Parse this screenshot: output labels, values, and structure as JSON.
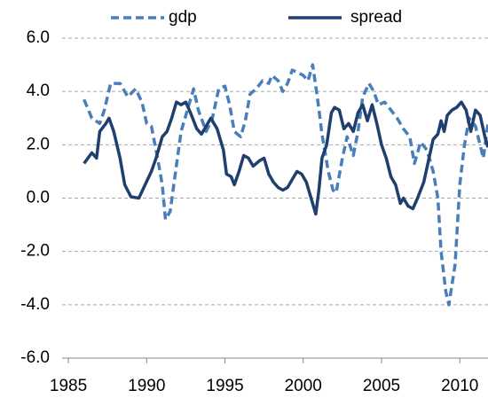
{
  "chart_data": {
    "type": "line",
    "legend": "top",
    "grid": true,
    "xlim": [
      1984.6,
      2011.8
    ],
    "xticks": [
      1985,
      1990,
      1995,
      2000,
      2005,
      2010
    ],
    "ylim": [
      -6,
      6
    ],
    "yticks": [
      {
        "value": -6,
        "label": "-6.0"
      },
      {
        "value": -4,
        "label": "-4.0"
      },
      {
        "value": -2,
        "label": "-2.0"
      },
      {
        "value": 0,
        "label": "0.0"
      },
      {
        "value": 2,
        "label": "2.0"
      },
      {
        "value": 4,
        "label": "4.0"
      },
      {
        "value": 6,
        "label": "6.0"
      }
    ],
    "series": [
      {
        "name": "gdp",
        "color": "#4a7ebb",
        "dash": true,
        "x": [
          1986,
          1986.5,
          1987,
          1987.3,
          1987.7,
          1988.3,
          1988.8,
          1989.3,
          1989.7,
          1990,
          1990.3,
          1990.7,
          1991,
          1991.2,
          1991.5,
          1991.8,
          1992.2,
          1992.6,
          1993,
          1993.3,
          1993.8,
          1994.2,
          1994.6,
          1995,
          1995.3,
          1995.6,
          1996,
          1996.3,
          1996.6,
          1997,
          1997.4,
          1997.8,
          1998,
          1998.4,
          1998.7,
          1999,
          1999.3,
          1999.7,
          2000,
          2000.3,
          2000.6,
          2000.9,
          2001.2,
          2001.6,
          2001.9,
          2002.1,
          2002.5,
          2002.8,
          2003.2,
          2003.5,
          2003.8,
          2004.2,
          2004.5,
          2004.8,
          2005.2,
          2005.6,
          2006,
          2006.4,
          2006.8,
          2007.1,
          2007.5,
          2007.9,
          2008.3,
          2008.6,
          2008.8,
          2009.1,
          2009.3,
          2009.7,
          2010,
          2010.3,
          2010.6,
          2011,
          2011.5,
          2011.8
        ],
        "values": [
          3.7,
          3.0,
          2.8,
          3.3,
          4.3,
          4.3,
          3.8,
          4.1,
          3.6,
          2.8,
          2.7,
          1.5,
          0.5,
          -0.8,
          -0.5,
          0.8,
          2.5,
          3.3,
          4.1,
          3.3,
          2.5,
          3.0,
          4.1,
          4.2,
          3.5,
          2.5,
          2.3,
          2.9,
          3.9,
          4.1,
          4.4,
          4.3,
          4.6,
          4.4,
          4.0,
          4.3,
          4.8,
          4.7,
          4.6,
          4.4,
          5.0,
          3.8,
          2.4,
          1.0,
          0.3,
          0.2,
          1.5,
          2.3,
          1.6,
          2.5,
          3.8,
          4.3,
          4.0,
          3.5,
          3.6,
          3.3,
          3.0,
          2.6,
          2.3,
          1.3,
          2.1,
          1.8,
          1.0,
          0.0,
          -2.0,
          -3.5,
          -4.0,
          -2.5,
          0.5,
          2.0,
          3.0,
          2.7,
          1.5,
          2.8
        ]
      },
      {
        "name": "spread",
        "color": "#1f3f6e",
        "dash": false,
        "x": [
          1986,
          1986.5,
          1986.8,
          1987,
          1987.4,
          1987.6,
          1987.9,
          1988.3,
          1988.6,
          1989,
          1989.5,
          1989.9,
          1990.3,
          1990.6,
          1991,
          1991.3,
          1991.6,
          1991.9,
          1992.2,
          1992.5,
          1992.8,
          1993.2,
          1993.5,
          1993.8,
          1994.1,
          1994.5,
          1994.9,
          1995.1,
          1995.4,
          1995.6,
          1995.9,
          1996.2,
          1996.5,
          1996.8,
          1997.2,
          1997.5,
          1997.8,
          1998.1,
          1998.4,
          1998.7,
          1999,
          1999.3,
          1999.6,
          1999.9,
          2000.2,
          2000.5,
          2000.8,
          2001,
          2001.2,
          2001.5,
          2001.8,
          2002,
          2002.3,
          2002.6,
          2002.9,
          2003.2,
          2003.5,
          2003.8,
          2004.1,
          2004.4,
          2004.7,
          2005,
          2005.3,
          2005.6,
          2005.9,
          2006.2,
          2006.4,
          2006.7,
          2007,
          2007.3,
          2007.7,
          2008,
          2008.3,
          2008.6,
          2008.8,
          2009,
          2009.2,
          2009.5,
          2009.8,
          2010.1,
          2010.4,
          2010.7,
          2011,
          2011.3,
          2011.6,
          2011.8
        ],
        "values": [
          1.3,
          1.7,
          1.5,
          2.5,
          2.8,
          3.0,
          2.5,
          1.5,
          0.5,
          0.05,
          0.0,
          0.5,
          1.0,
          1.5,
          2.3,
          2.5,
          3.0,
          3.6,
          3.5,
          3.6,
          3.2,
          2.6,
          2.4,
          2.7,
          3.0,
          2.6,
          1.8,
          0.9,
          0.8,
          0.5,
          1.0,
          1.6,
          1.5,
          1.2,
          1.4,
          1.5,
          0.9,
          0.6,
          0.4,
          0.3,
          0.4,
          0.7,
          1.0,
          0.9,
          0.6,
          0.0,
          -0.6,
          0.3,
          1.5,
          2.0,
          3.2,
          3.4,
          3.3,
          2.6,
          2.8,
          2.5,
          3.2,
          3.5,
          2.9,
          3.5,
          2.8,
          2.0,
          1.5,
          0.8,
          0.5,
          -0.2,
          0.0,
          -0.3,
          -0.4,
          0.0,
          0.6,
          1.4,
          2.2,
          2.4,
          2.9,
          2.5,
          3.1,
          3.3,
          3.4,
          3.6,
          3.3,
          2.5,
          3.3,
          3.1,
          2.3,
          1.9
        ]
      }
    ]
  }
}
